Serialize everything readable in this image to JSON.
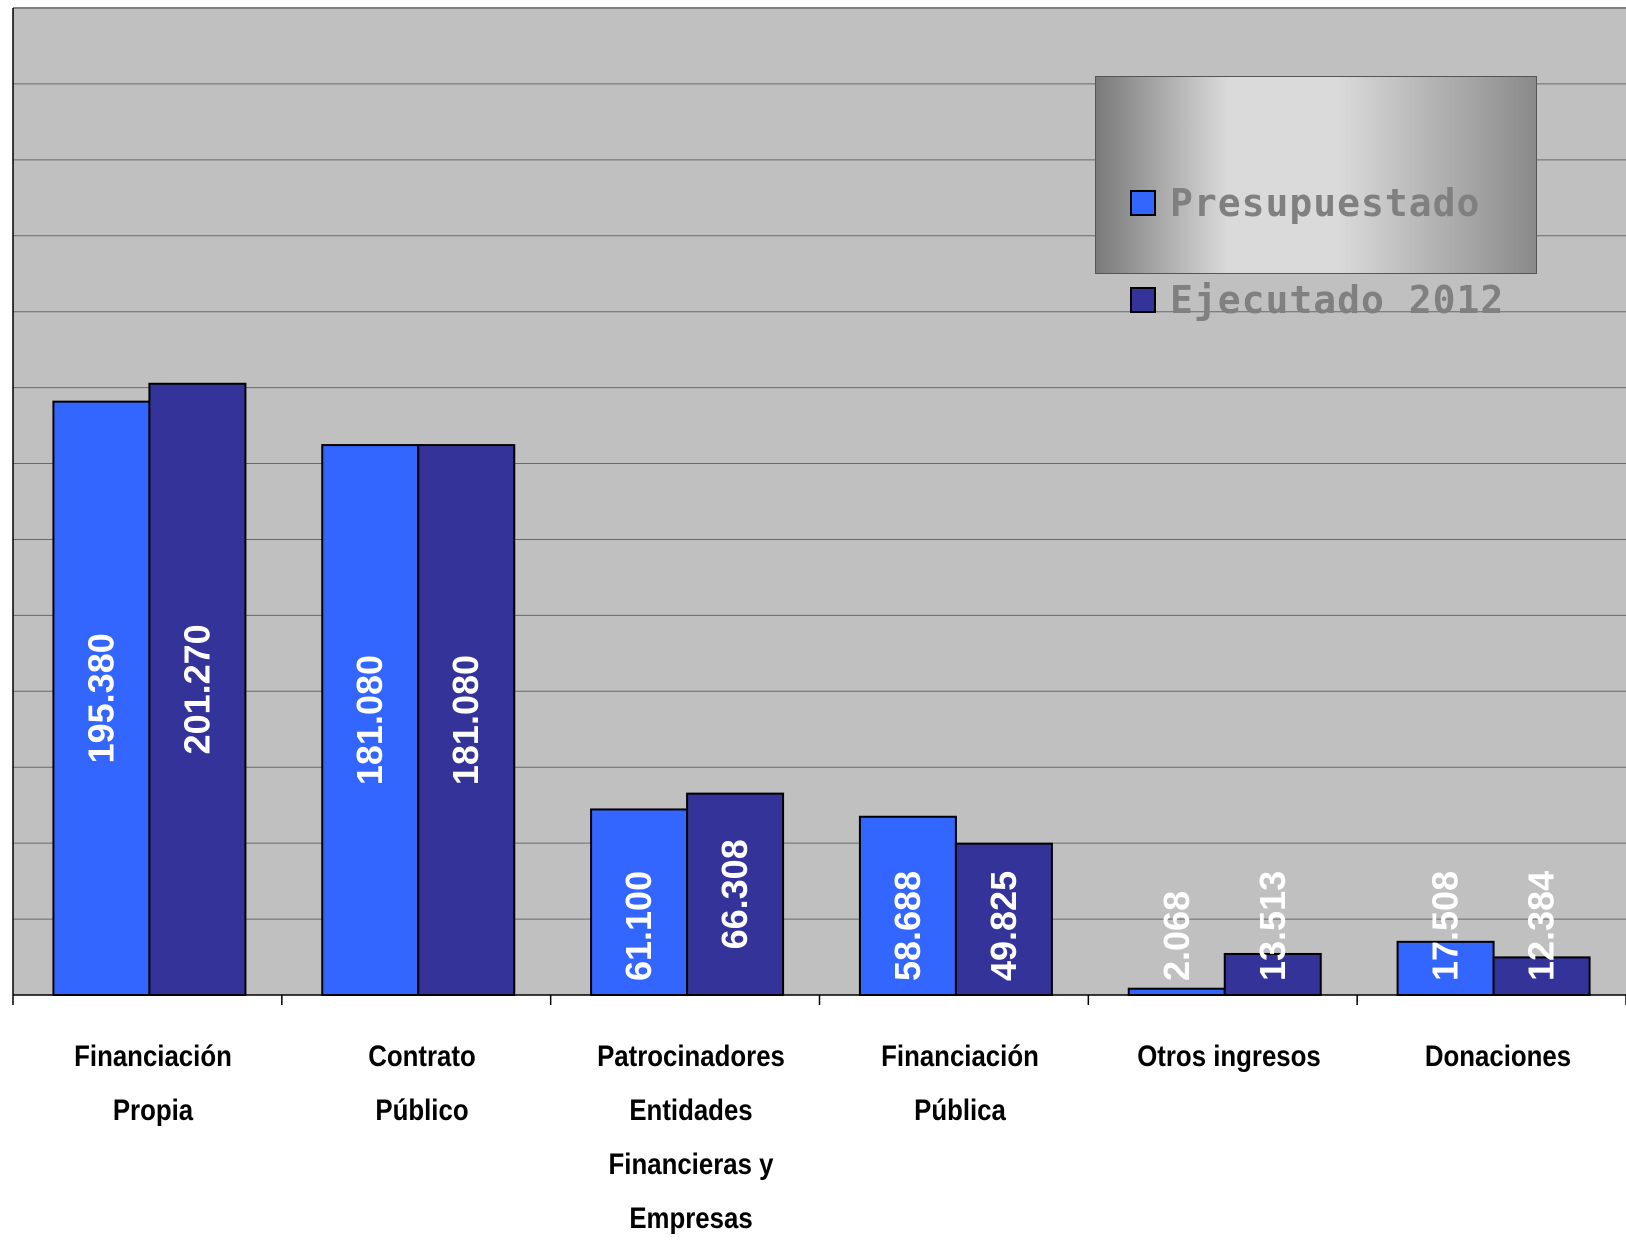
{
  "chart_data": {
    "type": "bar",
    "categories": [
      [
        "Financiación",
        "Propia"
      ],
      [
        "Contrato Público"
      ],
      [
        "Patrocinadores",
        "Entidades",
        "Financieras y",
        "Empresas"
      ],
      [
        "Financiación",
        "Pública"
      ],
      [
        "Otros ingresos"
      ],
      [
        "Donaciones"
      ]
    ],
    "series": [
      {
        "name": "Presupuestado",
        "color": "#3366ff",
        "values": [
          195380,
          181080,
          61100,
          58688,
          2068,
          17508
        ],
        "labels": [
          "195.380",
          "181.080",
          "61.100",
          "58.688",
          "2.068",
          "17.508"
        ]
      },
      {
        "name": "Ejecutado  2012",
        "color": "#333399",
        "values": [
          201270,
          181080,
          66308,
          49825,
          13513,
          12384
        ],
        "labels": [
          "201.270",
          "181.080",
          "66.308",
          "49.825",
          "13.513",
          "12.384"
        ]
      }
    ],
    "ylim": [
      0,
      325000
    ],
    "grid": true,
    "legend_position": "top-right",
    "plot_background": "#c0c0c0",
    "label_color": "#ffffff"
  }
}
